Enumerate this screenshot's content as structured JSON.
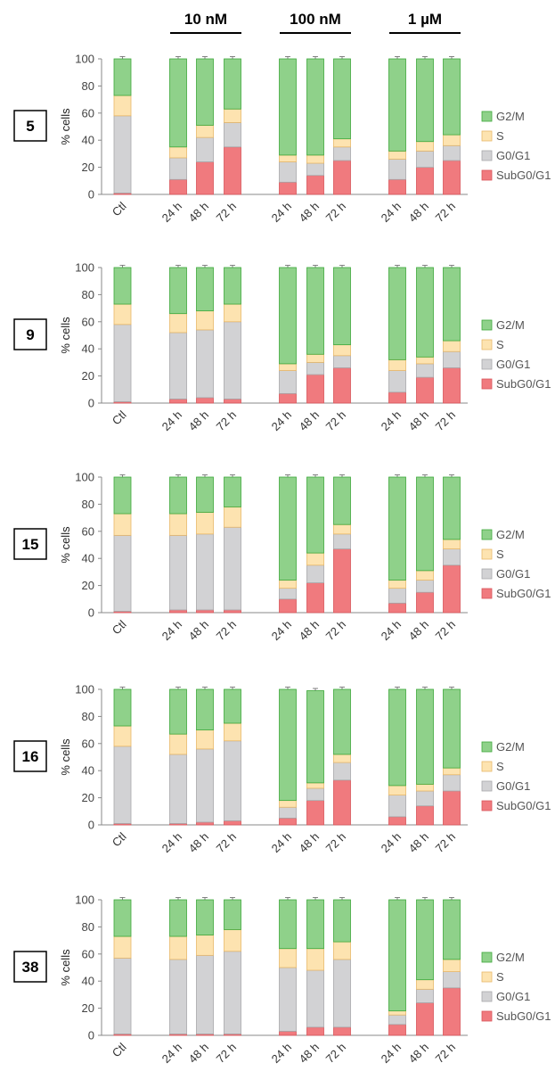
{
  "concentrations": [
    "10 nM",
    "100 nM",
    "1 µM"
  ],
  "y_label": "% cells",
  "legend": [
    {
      "label": "G2/M",
      "color": "#8fd18a",
      "stroke": "#3ea83a"
    },
    {
      "label": "S",
      "color": "#fde3b0",
      "stroke": "#e8b86a"
    },
    {
      "label": "G0/G1",
      "color": "#d2d2d4",
      "stroke": "#a8a8aa"
    },
    {
      "label": "SubG0/G1",
      "color": "#f07a7e",
      "stroke": "#d9555a"
    }
  ],
  "chart_data": [
    {
      "type": "bar",
      "stacked": true,
      "compound": "5",
      "categories": [
        "Ctl",
        "24 h",
        "48 h",
        "72 h",
        "24 h",
        "48 h",
        "72 h",
        "24 h",
        "48 h",
        "72 h"
      ],
      "ylim": [
        0,
        100
      ],
      "yticks": [
        0,
        20,
        40,
        60,
        80,
        100
      ],
      "series": [
        {
          "name": "SubG0/G1",
          "values": [
            1,
            11,
            24,
            35,
            9,
            14,
            25,
            11,
            20,
            25
          ]
        },
        {
          "name": "G0/G1",
          "values": [
            57,
            16,
            18,
            18,
            15,
            9,
            10,
            15,
            12,
            11
          ]
        },
        {
          "name": "S",
          "values": [
            15,
            8,
            9,
            10,
            5,
            6,
            6,
            6,
            7,
            8
          ]
        },
        {
          "name": "G2/M",
          "values": [
            27,
            65,
            49,
            37,
            71,
            71,
            59,
            68,
            61,
            56
          ]
        }
      ]
    },
    {
      "type": "bar",
      "stacked": true,
      "compound": "9",
      "categories": [
        "Ctl",
        "24 h",
        "48 h",
        "72 h",
        "24 h",
        "48 h",
        "72 h",
        "24 h",
        "48 h",
        "72 h"
      ],
      "ylim": [
        0,
        100
      ],
      "yticks": [
        0,
        20,
        40,
        60,
        80,
        100
      ],
      "series": [
        {
          "name": "SubG0/G1",
          "values": [
            1,
            3,
            4,
            3,
            7,
            21,
            26,
            8,
            19,
            26
          ]
        },
        {
          "name": "G0/G1",
          "values": [
            57,
            49,
            50,
            57,
            17,
            9,
            9,
            16,
            10,
            12
          ]
        },
        {
          "name": "S",
          "values": [
            15,
            14,
            14,
            13,
            5,
            6,
            8,
            8,
            5,
            8
          ]
        },
        {
          "name": "G2/M",
          "values": [
            27,
            34,
            32,
            27,
            71,
            64,
            57,
            68,
            66,
            54
          ]
        }
      ]
    },
    {
      "type": "bar",
      "stacked": true,
      "compound": "15",
      "categories": [
        "Ctl",
        "24 h",
        "48 h",
        "72 h",
        "24 h",
        "48 h",
        "72 h",
        "24 h",
        "48 h",
        "72 h"
      ],
      "ylim": [
        0,
        100
      ],
      "yticks": [
        0,
        20,
        40,
        60,
        80,
        100
      ],
      "series": [
        {
          "name": "SubG0/G1",
          "values": [
            1,
            2,
            2,
            2,
            10,
            22,
            47,
            7,
            15,
            35
          ]
        },
        {
          "name": "G0/G1",
          "values": [
            56,
            55,
            56,
            61,
            8,
            13,
            11,
            11,
            9,
            12
          ]
        },
        {
          "name": "S",
          "values": [
            16,
            16,
            16,
            15,
            6,
            9,
            7,
            6,
            7,
            7
          ]
        },
        {
          "name": "G2/M",
          "values": [
            27,
            27,
            26,
            22,
            76,
            56,
            35,
            76,
            69,
            46
          ]
        }
      ]
    },
    {
      "type": "bar",
      "stacked": true,
      "compound": "16",
      "categories": [
        "Ctl",
        "24 h",
        "48 h",
        "72 h",
        "24 h",
        "48 h",
        "72 h",
        "24 h",
        "48 h",
        "72 h"
      ],
      "ylim": [
        0,
        100
      ],
      "yticks": [
        0,
        20,
        40,
        60,
        80,
        100
      ],
      "series": [
        {
          "name": "SubG0/G1",
          "values": [
            1,
            1,
            2,
            3,
            5,
            18,
            33,
            6,
            14,
            25
          ]
        },
        {
          "name": "G0/G1",
          "values": [
            57,
            51,
            54,
            59,
            8,
            9,
            13,
            16,
            11,
            12
          ]
        },
        {
          "name": "S",
          "values": [
            15,
            15,
            14,
            13,
            5,
            4,
            6,
            7,
            5,
            5
          ]
        },
        {
          "name": "G2/M",
          "values": [
            27,
            33,
            30,
            25,
            82,
            68,
            48,
            71,
            70,
            58
          ]
        }
      ]
    },
    {
      "type": "bar",
      "stacked": true,
      "compound": "38",
      "categories": [
        "Ctl",
        "24 h",
        "48 h",
        "72 h",
        "24 h",
        "48 h",
        "72 h",
        "24 h",
        "48 h",
        "72 h"
      ],
      "ylim": [
        0,
        100
      ],
      "yticks": [
        0,
        20,
        40,
        60,
        80,
        100
      ],
      "series": [
        {
          "name": "SubG0/G1",
          "values": [
            1,
            1,
            1,
            1,
            3,
            6,
            6,
            8,
            24,
            35
          ]
        },
        {
          "name": "G0/G1",
          "values": [
            56,
            55,
            58,
            61,
            47,
            42,
            50,
            7,
            10,
            12
          ]
        },
        {
          "name": "S",
          "values": [
            16,
            17,
            15,
            16,
            14,
            16,
            13,
            3,
            7,
            9
          ]
        },
        {
          "name": "G2/M",
          "values": [
            27,
            27,
            26,
            22,
            36,
            36,
            31,
            82,
            59,
            44
          ]
        }
      ]
    }
  ]
}
